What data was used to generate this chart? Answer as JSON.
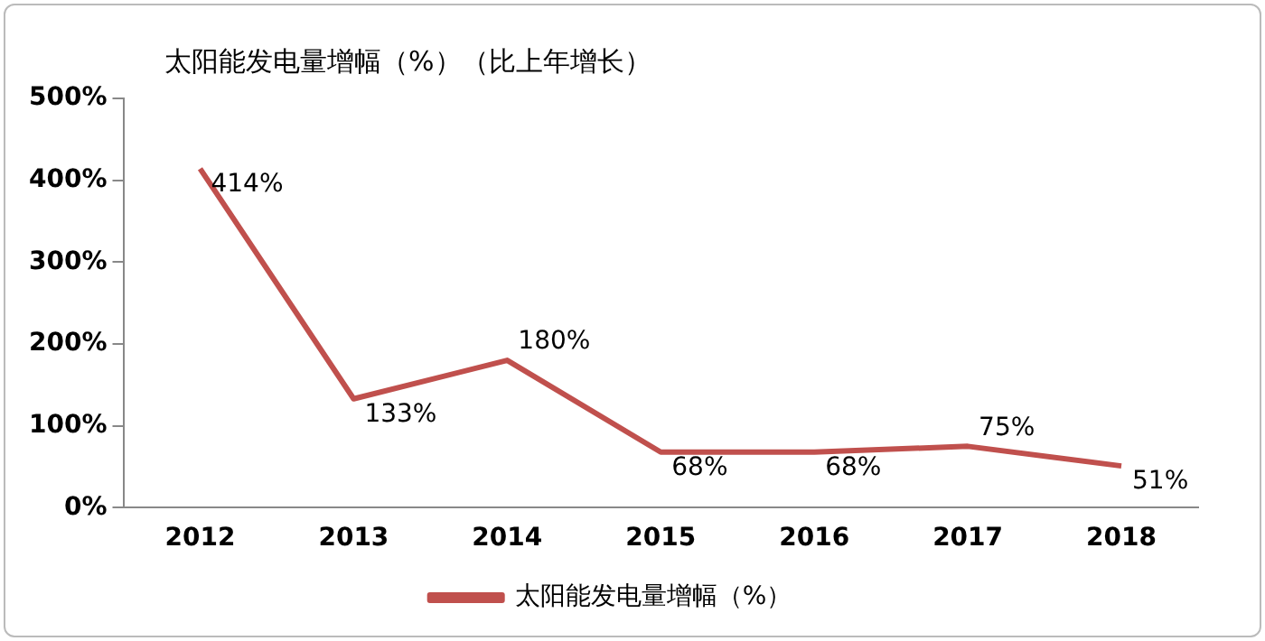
{
  "chart_data": {
    "type": "line",
    "title": "太阳能发电量增幅（%）（比上年增长）",
    "categories": [
      "2012",
      "2013",
      "2014",
      "2015",
      "2016",
      "2017",
      "2018"
    ],
    "series": [
      {
        "name": "太阳能发电量增幅（%）",
        "color": "#c0504d",
        "values": [
          414,
          133,
          180,
          68,
          68,
          75,
          51
        ],
        "value_labels": [
          "414%",
          "133%",
          "180%",
          "68%",
          "68%",
          "75%",
          "51%"
        ]
      }
    ],
    "ylim": [
      0,
      500
    ],
    "yticks": [
      {
        "value": 0,
        "label": "0%"
      },
      {
        "value": 100,
        "label": "100%"
      },
      {
        "value": 200,
        "label": "200%"
      },
      {
        "value": 300,
        "label": "300%"
      },
      {
        "value": 400,
        "label": "400%"
      },
      {
        "value": 500,
        "label": "500%"
      }
    ],
    "grid": false,
    "legend": "bottom",
    "marker": "none",
    "line_style": "solid"
  }
}
